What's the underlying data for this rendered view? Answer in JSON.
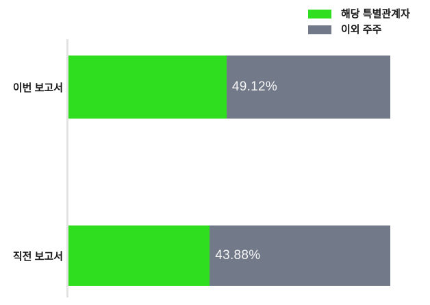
{
  "chart_data": {
    "type": "bar",
    "orientation": "horizontal",
    "stacked": true,
    "title": "",
    "xlabel": "",
    "ylabel": "",
    "xlim": [
      0,
      100
    ],
    "grid": false,
    "legend_position": "top-right",
    "categories": [
      "이번 보고서",
      "직전 보고서"
    ],
    "series": [
      {
        "name": "해당 특별관계자",
        "color": "#2fde1f",
        "values": [
          49.12,
          43.88
        ]
      },
      {
        "name": "이외 주주",
        "color": "#727988",
        "values": [
          50.88,
          56.12
        ]
      }
    ],
    "value_labels": [
      "49.12%",
      "43.88%"
    ]
  },
  "colors": {
    "primary_green": "#2fde1f",
    "secondary_gray": "#727988",
    "axis_line": "#e3e3e3",
    "label_text": "#151515",
    "value_text": "#f5f5f5",
    "background": "#ffffff"
  }
}
